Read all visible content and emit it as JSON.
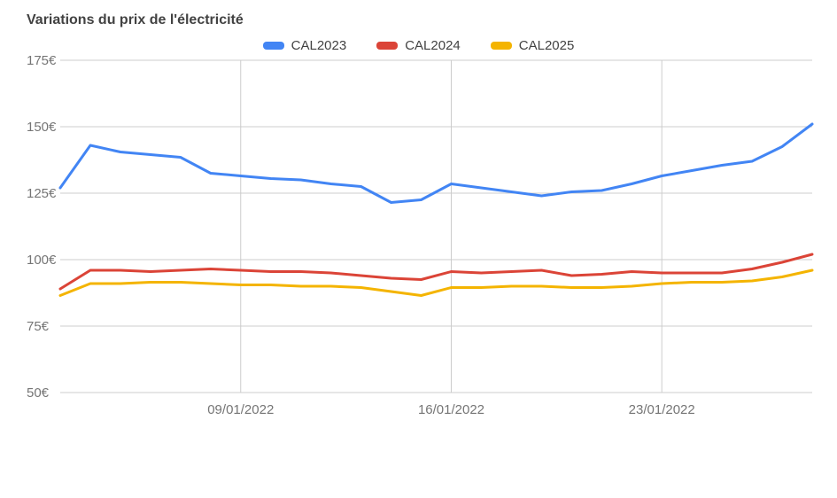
{
  "title": "Variations du prix de l'électricité",
  "colors": {
    "background": "#ffffff",
    "title": "#424242",
    "axis_label": "#757575",
    "grid": "#cccccc",
    "legend_text": "#424242"
  },
  "chart_data": {
    "type": "line",
    "title": "Variations du prix de l'électricité",
    "x": [
      "03/01/2022",
      "04/01/2022",
      "05/01/2022",
      "06/01/2022",
      "07/01/2022",
      "08/01/2022",
      "09/01/2022",
      "10/01/2022",
      "11/01/2022",
      "12/01/2022",
      "13/01/2022",
      "14/01/2022",
      "15/01/2022",
      "16/01/2022",
      "17/01/2022",
      "18/01/2022",
      "19/01/2022",
      "20/01/2022",
      "21/01/2022",
      "22/01/2022",
      "23/01/2022",
      "24/01/2022",
      "25/01/2022",
      "26/01/2022",
      "27/01/2022",
      "28/01/2022"
    ],
    "series": [
      {
        "name": "CAL2023",
        "color": "#4285F4",
        "values": [
          127,
          143,
          140.5,
          139.5,
          138.5,
          132.5,
          131.5,
          130.5,
          130,
          128.5,
          127.5,
          121.5,
          122.5,
          128.5,
          127,
          125.5,
          124,
          125.5,
          126,
          128.5,
          131.5,
          133.5,
          135.5,
          137,
          142.5,
          151
        ]
      },
      {
        "name": "CAL2024",
        "color": "#DB4437",
        "values": [
          89,
          96,
          96,
          95.5,
          96,
          96.5,
          96,
          95.5,
          95.5,
          95,
          94,
          93,
          92.5,
          95.5,
          95,
          95.5,
          96,
          94,
          94.5,
          95.5,
          95,
          95,
          95,
          96.5,
          99,
          102
        ]
      },
      {
        "name": "CAL2025",
        "color": "#F4B400",
        "values": [
          86.5,
          91,
          91,
          91.5,
          91.5,
          91,
          90.5,
          90.5,
          90,
          90,
          89.5,
          88,
          86.5,
          89.5,
          89.5,
          90,
          90,
          89.5,
          89.5,
          90,
          91,
          91.5,
          91.5,
          92,
          93.5,
          96
        ]
      }
    ],
    "ylim": [
      50,
      175
    ],
    "yticks": [
      {
        "value": 50,
        "label": "50€"
      },
      {
        "value": 75,
        "label": "75€"
      },
      {
        "value": 100,
        "label": "100€"
      },
      {
        "value": 125,
        "label": "125€"
      },
      {
        "value": 150,
        "label": "150€"
      },
      {
        "value": 175,
        "label": "175€"
      }
    ],
    "xticks": [
      {
        "index": 6,
        "label": "09/01/2022"
      },
      {
        "index": 13,
        "label": "16/01/2022"
      },
      {
        "index": 20,
        "label": "23/01/2022"
      }
    ],
    "grid": true,
    "legend_position": "top",
    "xlabel": "",
    "ylabel": ""
  }
}
